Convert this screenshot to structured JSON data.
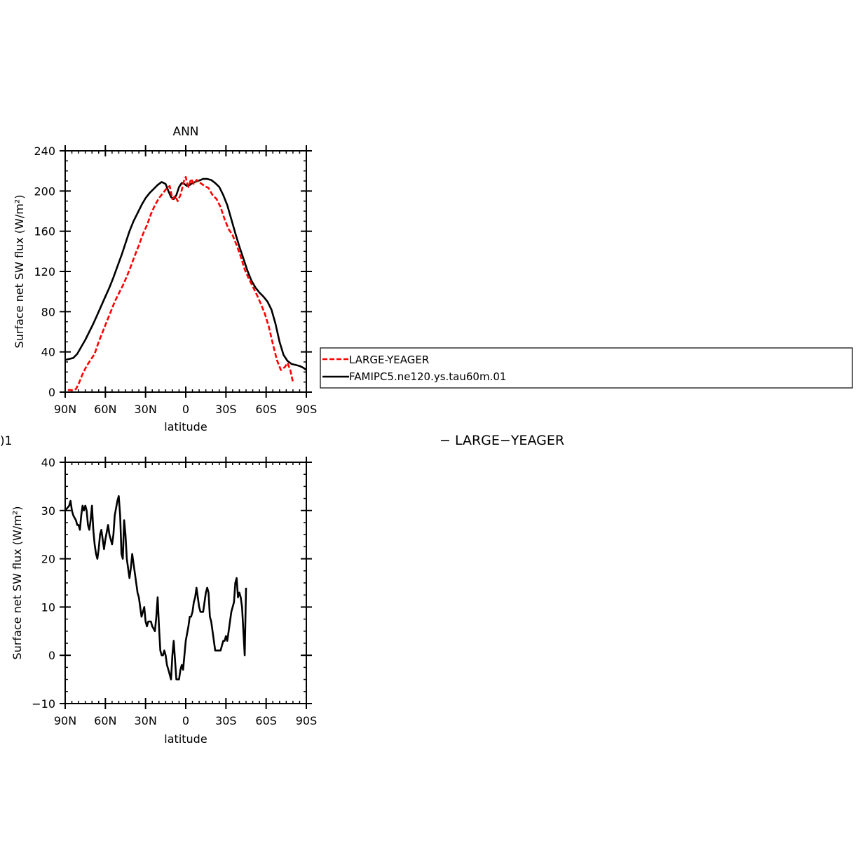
{
  "x_tick_labels": [
    "90N",
    "60N",
    "30N",
    "0",
    "30S",
    "60S",
    "90S"
  ],
  "chart_data": [
    {
      "type": "line",
      "title": "ANN",
      "xlabel": "latitude",
      "ylabel": "Surface net SW flux (W/m²)",
      "xlim": [
        90,
        -90
      ],
      "ylim": [
        0,
        240
      ],
      "yticks": [
        0,
        40,
        80,
        120,
        160,
        200,
        240
      ],
      "legend": {
        "placement": "right",
        "entries": [
          {
            "name": "LARGE-YEAGER",
            "color": "#ff0000",
            "dash": "dashed"
          },
          {
            "name": "FAMIPC5.ne120.ys.tau60m.01",
            "color": "#000000",
            "dash": "solid"
          }
        ]
      },
      "series": [
        {
          "name": "LARGE-YEAGER",
          "color": "#ff0000",
          "points": [
            [
              88,
              2
            ],
            [
              85,
              2
            ],
            [
              82,
              3
            ],
            [
              80,
              8
            ],
            [
              77,
              18
            ],
            [
              74,
              26
            ],
            [
              71,
              32
            ],
            [
              68,
              38
            ],
            [
              65,
              50
            ],
            [
              62,
              60
            ],
            [
              59,
              70
            ],
            [
              56,
              80
            ],
            [
              53,
              90
            ],
            [
              50,
              98
            ],
            [
              47,
              106
            ],
            [
              44,
              115
            ],
            [
              41,
              125
            ],
            [
              38,
              136
            ],
            [
              35,
              146
            ],
            [
              32,
              157
            ],
            [
              29,
              166
            ],
            [
              26,
              177
            ],
            [
              23,
              186
            ],
            [
              20,
              193
            ],
            [
              17,
              198
            ],
            [
              14,
              203
            ],
            [
              12,
              205
            ],
            [
              10,
              192
            ],
            [
              8,
              195
            ],
            [
              6,
              190
            ],
            [
              4,
              196
            ],
            [
              2,
              206
            ],
            [
              1,
              212
            ],
            [
              0,
              214
            ],
            [
              -1,
              208
            ],
            [
              -2,
              204
            ],
            [
              -4,
              212
            ],
            [
              -6,
              207
            ],
            [
              -8,
              211
            ],
            [
              -10,
              209
            ],
            [
              -12,
              207
            ],
            [
              -14,
              205
            ],
            [
              -17,
              203
            ],
            [
              -20,
              196
            ],
            [
              -23,
              192
            ],
            [
              -26,
              184
            ],
            [
              -29,
              172
            ],
            [
              -32,
              162
            ],
            [
              -35,
              156
            ],
            [
              -38,
              146
            ],
            [
              -41,
              135
            ],
            [
              -44,
              122
            ],
            [
              -47,
              113
            ],
            [
              -50,
              105
            ],
            [
              -53,
              97
            ],
            [
              -56,
              88
            ],
            [
              -59,
              78
            ],
            [
              -62,
              65
            ],
            [
              -65,
              48
            ],
            [
              -68,
              32
            ],
            [
              -71,
              22
            ],
            [
              -74,
              25
            ],
            [
              -76,
              29
            ],
            [
              -78,
              22
            ],
            [
              -80,
              10
            ]
          ]
        },
        {
          "name": "FAMIPC5.ne120.ys.tau60m.01",
          "color": "#000000",
          "points": [
            [
              90,
              32
            ],
            [
              87,
              33
            ],
            [
              84,
              34
            ],
            [
              81,
              38
            ],
            [
              78,
              45
            ],
            [
              75,
              52
            ],
            [
              72,
              60
            ],
            [
              69,
              68
            ],
            [
              66,
              77
            ],
            [
              63,
              86
            ],
            [
              60,
              95
            ],
            [
              57,
              104
            ],
            [
              54,
              114
            ],
            [
              51,
              125
            ],
            [
              48,
              136
            ],
            [
              45,
              148
            ],
            [
              42,
              160
            ],
            [
              39,
              170
            ],
            [
              36,
              178
            ],
            [
              33,
              186
            ],
            [
              30,
              193
            ],
            [
              27,
              198
            ],
            [
              24,
              202
            ],
            [
              21,
              206
            ],
            [
              18,
              209
            ],
            [
              15,
              207
            ],
            [
              13,
              200
            ],
            [
              11,
              194
            ],
            [
              9,
              192
            ],
            [
              7,
              196
            ],
            [
              5,
              204
            ],
            [
              3,
              208
            ],
            [
              1,
              207
            ],
            [
              -1,
              205
            ],
            [
              -3,
              206
            ],
            [
              -5,
              208
            ],
            [
              -7,
              209
            ],
            [
              -9,
              210
            ],
            [
              -11,
              211
            ],
            [
              -13,
              212
            ],
            [
              -16,
              212
            ],
            [
              -19,
              211
            ],
            [
              -22,
              208
            ],
            [
              -25,
              204
            ],
            [
              -28,
              196
            ],
            [
              -31,
              186
            ],
            [
              -34,
              172
            ],
            [
              -37,
              158
            ],
            [
              -40,
              145
            ],
            [
              -43,
              133
            ],
            [
              -46,
              121
            ],
            [
              -49,
              111
            ],
            [
              -52,
              104
            ],
            [
              -55,
              99
            ],
            [
              -58,
              95
            ],
            [
              -61,
              90
            ],
            [
              -64,
              82
            ],
            [
              -67,
              68
            ],
            [
              -70,
              50
            ],
            [
              -73,
              37
            ],
            [
              -76,
              31
            ],
            [
              -79,
              28
            ],
            [
              -82,
              27
            ],
            [
              -85,
              26
            ],
            [
              -88,
              24
            ],
            [
              -90,
              22
            ]
          ]
        }
      ]
    },
    {
      "type": "line",
      "title": "",
      "partial_title_visible": ")1",
      "right_title": "− LARGE−YEAGER",
      "xlabel": "latitude",
      "ylabel": "Surface net SW flux (W/m²)",
      "xlim": [
        90,
        -90
      ],
      "ylim": [
        -10,
        40
      ],
      "yticks": [
        -10,
        0,
        10,
        20,
        30,
        40
      ],
      "series": [
        {
          "name": "",
          "color": "#000000",
          "points": [
            [
              90,
              30
            ],
            [
              87,
              31
            ],
            [
              86,
              32
            ],
            [
              85,
              30
            ],
            [
              84,
              29
            ],
            [
              82,
              28
            ],
            [
              81,
              27
            ],
            [
              80,
              27
            ],
            [
              79,
              26
            ],
            [
              78,
              29
            ],
            [
              77,
              31
            ],
            [
              76,
              30
            ],
            [
              75,
              31
            ],
            [
              74,
              30
            ],
            [
              73,
              27
            ],
            [
              72,
              26
            ],
            [
              71,
              28
            ],
            [
              70,
              31
            ],
            [
              69,
              26
            ],
            [
              68,
              23
            ],
            [
              67,
              21
            ],
            [
              66,
              20
            ],
            [
              65,
              22
            ],
            [
              64,
              25
            ],
            [
              63,
              26
            ],
            [
              62,
              24
            ],
            [
              61,
              22
            ],
            [
              60,
              24
            ],
            [
              58,
              27
            ],
            [
              57,
              25
            ],
            [
              55,
              23
            ],
            [
              54,
              25
            ],
            [
              53,
              29
            ],
            [
              51,
              32
            ],
            [
              50,
              33
            ],
            [
              49,
              29
            ],
            [
              48,
              21
            ],
            [
              47,
              20
            ],
            [
              46,
              28
            ],
            [
              45,
              25
            ],
            [
              44,
              20
            ],
            [
              43,
              18
            ],
            [
              42,
              16
            ],
            [
              41,
              18
            ],
            [
              40,
              21
            ],
            [
              39,
              19
            ],
            [
              37,
              15
            ],
            [
              36,
              13
            ],
            [
              35,
              12
            ],
            [
              34,
              10
            ],
            [
              33,
              8
            ],
            [
              31,
              10
            ],
            [
              30,
              7
            ],
            [
              29,
              6
            ],
            [
              28,
              7
            ],
            [
              27,
              7
            ],
            [
              26,
              7
            ],
            [
              25,
              6
            ],
            [
              23,
              5
            ],
            [
              22,
              8
            ],
            [
              21,
              12
            ],
            [
              20,
              6
            ],
            [
              19,
              1
            ],
            [
              18,
              0
            ],
            [
              17,
              0
            ],
            [
              16,
              1
            ],
            [
              15,
              0
            ],
            [
              14,
              -2
            ],
            [
              13,
              -3
            ],
            [
              12,
              -4
            ],
            [
              11,
              -5
            ],
            [
              10,
              0
            ],
            [
              9,
              3
            ],
            [
              8,
              -1
            ],
            [
              7,
              -5
            ],
            [
              5,
              -5
            ],
            [
              4,
              -3
            ],
            [
              3,
              -2
            ],
            [
              2,
              -3
            ],
            [
              1,
              0
            ],
            [
              0,
              3
            ],
            [
              -2,
              6
            ],
            [
              -3,
              8
            ],
            [
              -4,
              8
            ],
            [
              -5,
              9
            ],
            [
              -6,
              11
            ],
            [
              -7,
              12
            ],
            [
              -8,
              14
            ],
            [
              -9,
              12
            ],
            [
              -10,
              10
            ],
            [
              -11,
              9
            ],
            [
              -13,
              9
            ],
            [
              -15,
              13
            ],
            [
              -16,
              14
            ],
            [
              -17,
              13
            ],
            [
              -18,
              8
            ],
            [
              -19,
              7
            ],
            [
              -20,
              5
            ],
            [
              -21,
              3
            ],
            [
              -22,
              1
            ],
            [
              -23,
              1
            ],
            [
              -24,
              1
            ],
            [
              -25,
              1
            ],
            [
              -26,
              1
            ],
            [
              -27,
              2
            ],
            [
              -28,
              3
            ],
            [
              -29,
              3
            ],
            [
              -30,
              4
            ],
            [
              -31,
              3
            ],
            [
              -32,
              5
            ],
            [
              -33,
              7
            ],
            [
              -34,
              9
            ],
            [
              -35,
              10
            ],
            [
              -36,
              11
            ],
            [
              -37,
              15
            ],
            [
              -38,
              16
            ],
            [
              -39,
              12
            ],
            [
              -40,
              13
            ],
            [
              -41,
              12
            ],
            [
              -42,
              10
            ],
            [
              -43,
              5
            ],
            [
              -44,
              0
            ],
            [
              -45,
              14
            ]
          ]
        }
      ]
    }
  ]
}
